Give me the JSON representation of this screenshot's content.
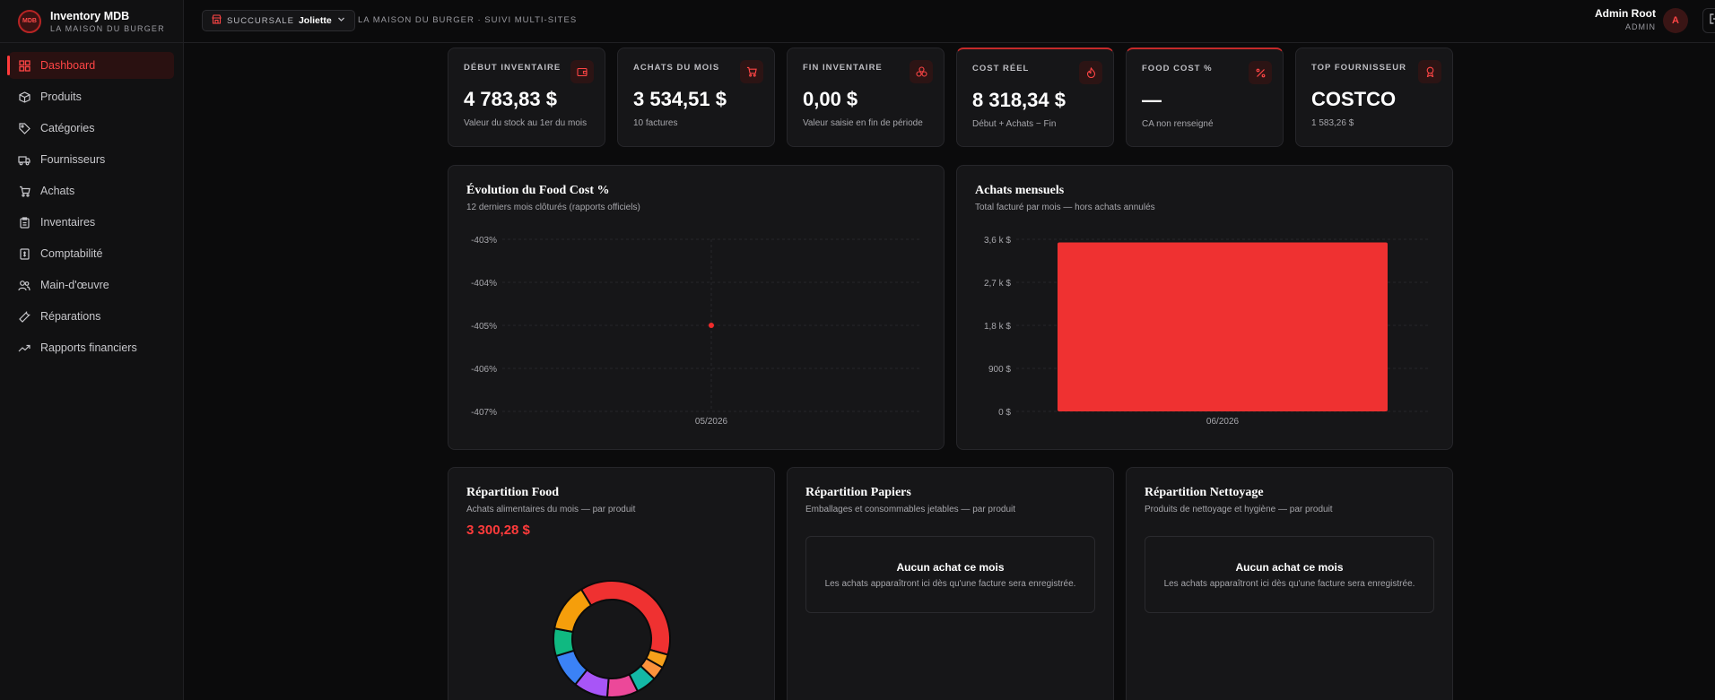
{
  "brand": {
    "title": "Inventory MDB",
    "subtitle": "LA MAISON DU BURGER",
    "logo_text": "MDB"
  },
  "sidebar": {
    "items": [
      {
        "label": "Dashboard",
        "icon": "dashboard-icon",
        "active": true
      },
      {
        "label": "Produits",
        "icon": "box-icon"
      },
      {
        "label": "Catégories",
        "icon": "tag-icon"
      },
      {
        "label": "Fournisseurs",
        "icon": "truck-icon"
      },
      {
        "label": "Achats",
        "icon": "cart-icon"
      },
      {
        "label": "Inventaires",
        "icon": "clipboard-icon"
      },
      {
        "label": "Comptabilité",
        "icon": "ledger-icon"
      },
      {
        "label": "Main-d'œuvre",
        "icon": "users-icon"
      },
      {
        "label": "Réparations",
        "icon": "wrench-icon"
      },
      {
        "label": "Rapports financiers",
        "icon": "trend-icon"
      }
    ]
  },
  "topbar": {
    "branch_label": "SUCCURSALE",
    "branch_value": "Joliette",
    "subtitle": "LA MAISON DU BURGER · SUIVI MULTI-SITES",
    "user_name": "Admin Root",
    "user_role": "ADMIN",
    "avatar_initial": "A"
  },
  "kpis": [
    {
      "label": "DÉBUT INVENTAIRE",
      "value": "4 783,83 $",
      "sub": "Valeur du stock au 1er du mois",
      "icon": "wallet-icon"
    },
    {
      "label": "ACHATS DU MOIS",
      "value": "3 534,51 $",
      "sub": "10 factures",
      "icon": "cart-icon"
    },
    {
      "label": "FIN INVENTAIRE",
      "value": "0,00 $",
      "sub": "Valeur saisie en fin de période",
      "icon": "layers-icon"
    },
    {
      "label": "COST RÉEL",
      "value": "8 318,34 $",
      "sub": "Début + Achats − Fin",
      "icon": "flame-icon"
    },
    {
      "label": "FOOD COST %",
      "value": "—",
      "sub": "CA non renseigné",
      "icon": "percent-icon"
    },
    {
      "label": "TOP FOURNISSEUR",
      "value": "COSTCO",
      "sub": "1 583,26 $",
      "icon": "award-icon"
    }
  ],
  "food_cost_panel": {
    "title": "Évolution du Food Cost %",
    "subtitle": "12 derniers mois clôturés (rapports officiels)"
  },
  "achats_panel": {
    "title": "Achats mensuels",
    "subtitle": "Total facturé par mois — hors achats annulés"
  },
  "repartition": [
    {
      "title": "Répartition Food",
      "subtitle": "Achats alimentaires du mois — par produit",
      "total": "3 300,28 $"
    },
    {
      "title": "Répartition Papiers",
      "subtitle": "Emballages et consommables jetables — par produit",
      "empty_title": "Aucun achat ce mois",
      "empty_sub": "Les achats apparaîtront ici dès qu'une facture sera enregistrée."
    },
    {
      "title": "Répartition Nettoyage",
      "subtitle": "Produits de nettoyage et hygiène — par produit",
      "empty_title": "Aucun achat ce mois",
      "empty_sub": "Les achats apparaîtront ici dès qu'une facture sera enregistrée."
    }
  ],
  "chart_data": [
    {
      "type": "line",
      "x": [
        "05/2026"
      ],
      "series": [
        {
          "values": [
            -405
          ]
        }
      ],
      "yticks": [
        "-403%",
        "-404%",
        "-405%",
        "-406%",
        "-407%"
      ],
      "ylim": [
        -407,
        -403
      ],
      "grid": true,
      "color": "#ef2b2b"
    },
    {
      "type": "bar",
      "categories": [
        "06/2026"
      ],
      "values": [
        3534.51
      ],
      "yticks": [
        "3,6 k $",
        "2,7 k $",
        "1,8 k $",
        "900 $",
        "0 $"
      ],
      "ylim": [
        0,
        3600
      ],
      "grid": true,
      "color": "#ef3131"
    },
    {
      "type": "pie",
      "donut": true,
      "values": [
        40,
        4,
        4,
        6,
        9,
        10,
        10,
        8,
        14
      ],
      "colors": [
        "#ef3131",
        "#f6a01a",
        "#fb923c",
        "#14b8a6",
        "#ec4899",
        "#a855f7",
        "#3b82f6",
        "#10b981",
        "#f59e0b"
      ]
    }
  ]
}
